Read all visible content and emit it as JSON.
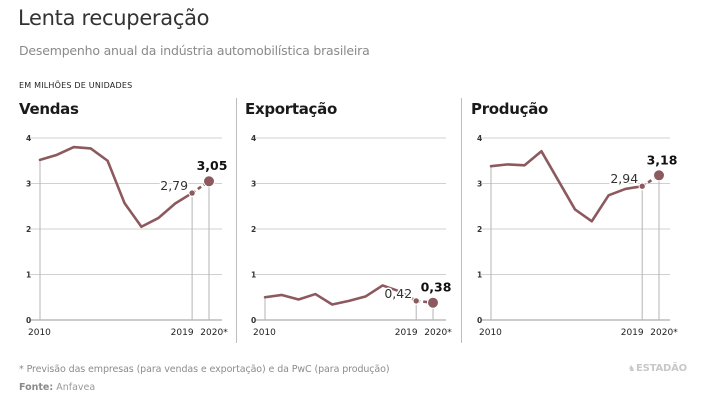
{
  "header": {
    "title": "Lenta recuperação",
    "subtitle": "Desempenho anual da indústria automobilística brasileira",
    "units": "EM MILHÕES DE UNIDADES"
  },
  "colors": {
    "line": "#8c5a5e",
    "grid": "#d0d0d0",
    "axis": "#bdbdbd",
    "text": "#1a1a1a"
  },
  "chart_data": [
    {
      "type": "line",
      "title": "Vendas",
      "xlabel": "",
      "ylabel": "",
      "ylim": [
        0,
        4
      ],
      "yticks": [
        "0",
        "1",
        "2",
        "3",
        "4"
      ],
      "x": [
        2010,
        2011,
        2012,
        2013,
        2014,
        2015,
        2016,
        2017,
        2018,
        2019,
        2020
      ],
      "xtick_labels": [
        "2010",
        "2019",
        "2020*"
      ],
      "values": [
        3.52,
        3.63,
        3.8,
        3.77,
        3.5,
        2.57,
        2.05,
        2.24,
        2.56,
        2.79,
        3.05
      ],
      "labels": {
        "2019": "2,79",
        "2020": "3,05"
      },
      "forecast_from": 2019,
      "grid": true
    },
    {
      "type": "line",
      "title": "Exportação",
      "xlabel": "",
      "ylabel": "",
      "ylim": [
        0,
        4
      ],
      "yticks": [
        "0",
        "1",
        "2",
        "3",
        "4"
      ],
      "x": [
        2010,
        2011,
        2012,
        2013,
        2014,
        2015,
        2016,
        2017,
        2018,
        2019,
        2020
      ],
      "xtick_labels": [
        "2010",
        "2019",
        "2020*"
      ],
      "values": [
        0.5,
        0.55,
        0.45,
        0.57,
        0.34,
        0.42,
        0.52,
        0.76,
        0.63,
        0.42,
        0.38
      ],
      "labels": {
        "2019": "0,42",
        "2020": "0,38"
      },
      "forecast_from": 2019,
      "grid": true
    },
    {
      "type": "line",
      "title": "Produção",
      "xlabel": "",
      "ylabel": "",
      "ylim": [
        0,
        4
      ],
      "yticks": [
        "0",
        "1",
        "2",
        "3",
        "4"
      ],
      "x": [
        2010,
        2011,
        2012,
        2013,
        2014,
        2015,
        2016,
        2017,
        2018,
        2019,
        2020
      ],
      "xtick_labels": [
        "2010",
        "2019",
        "2020*"
      ],
      "values": [
        3.38,
        3.42,
        3.4,
        3.71,
        3.07,
        2.43,
        2.17,
        2.74,
        2.88,
        2.94,
        3.18
      ],
      "labels": {
        "2019": "2,94",
        "2020": "3,18"
      },
      "forecast_from": 2019,
      "grid": true
    }
  ],
  "footer": {
    "footnote": "* Previsão das empresas (para vendas e exportação) e da PwC (para produção)",
    "source_label": "Fonte:",
    "source_value": "Anfavea",
    "brand": "ESTADÃO"
  }
}
